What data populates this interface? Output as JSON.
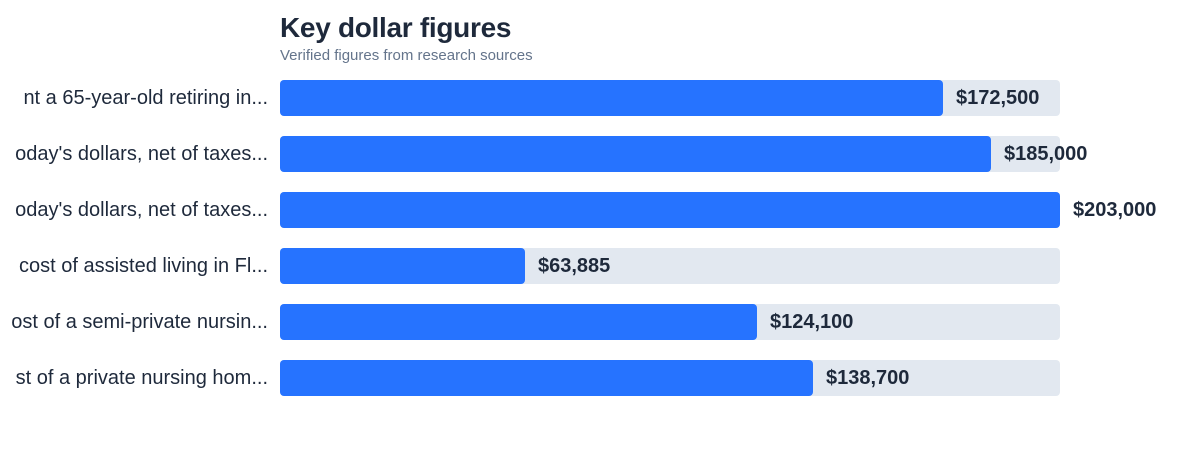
{
  "chart_data": {
    "type": "bar",
    "orientation": "horizontal",
    "title": "Key dollar figures",
    "subtitle": "Verified figures from research sources",
    "categories": [
      "nt a 65-year-old retiring in...",
      "oday's dollars, net of taxes...",
      "oday's dollars, net of taxes...",
      " cost of assisted living in Fl...",
      "ost of a semi-private nursin...",
      "st of a private nursing hom..."
    ],
    "values": [
      172500,
      185000,
      203000,
      63885,
      124100,
      138700
    ],
    "value_labels": [
      "$172,500",
      "$185,000",
      "$203,000",
      "$63,885",
      "$124,100",
      "$138,700"
    ],
    "xlim": [
      0,
      203000
    ],
    "colors": {
      "bar": "#2673ff",
      "track": "#e2e8f0"
    }
  }
}
